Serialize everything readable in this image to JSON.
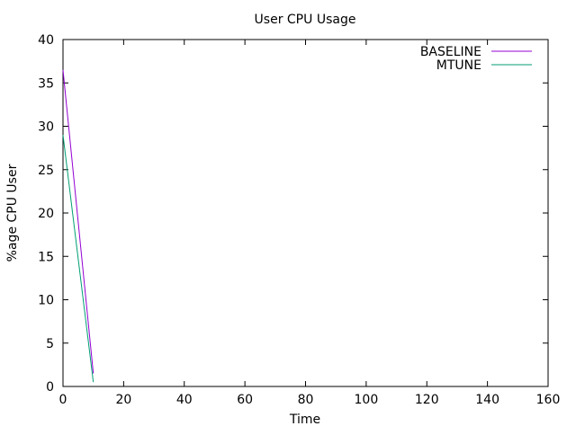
{
  "chart_data": {
    "type": "line",
    "title": "User CPU Usage",
    "xlabel": "Time",
    "ylabel": "%age CPU User",
    "xlim": [
      0,
      160
    ],
    "ylim": [
      0,
      40
    ],
    "xticks": [
      "0",
      "20",
      "40",
      "60",
      "80",
      "100",
      "120",
      "140",
      "160"
    ],
    "yticks": [
      "0",
      "5",
      "10",
      "15",
      "20",
      "25",
      "30",
      "35",
      "40"
    ],
    "grid": false,
    "legend_position": "top-right",
    "series": [
      {
        "name": "BASELINE",
        "color": "#9400d3",
        "x": [
          0,
          10
        ],
        "y": [
          36.5,
          1.5
        ]
      },
      {
        "name": "MTUNE",
        "color": "#009e73",
        "x": [
          0,
          10
        ],
        "y": [
          29.0,
          0.5
        ]
      }
    ]
  }
}
